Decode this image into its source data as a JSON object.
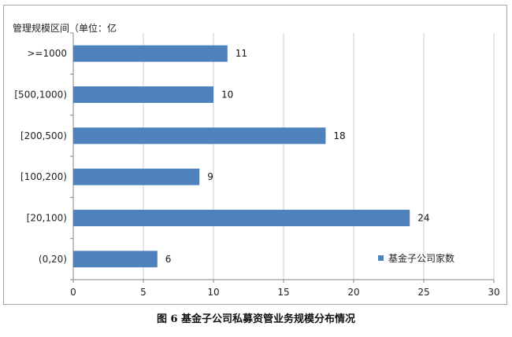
{
  "chart_data": {
    "type": "bar",
    "orientation": "horizontal",
    "ylabel": "管理规模区间（单位：亿",
    "categories": [
      ">=1000",
      "[500,1000)",
      "[200,500)",
      "[100,200)",
      "[20,100)",
      "(0,20)"
    ],
    "series": [
      {
        "name": "基金子公司家数",
        "values": [
          11,
          10,
          18,
          9,
          24,
          6
        ],
        "color": "#4f81bd"
      }
    ],
    "xlim": [
      0,
      30
    ],
    "xticks": [
      "0",
      "5",
      "10",
      "15",
      "20",
      "25",
      "30"
    ],
    "grid": true,
    "legend_position": "bottom-right",
    "caption": "图 6  基金子公司私募资管业务规模分布情况"
  }
}
